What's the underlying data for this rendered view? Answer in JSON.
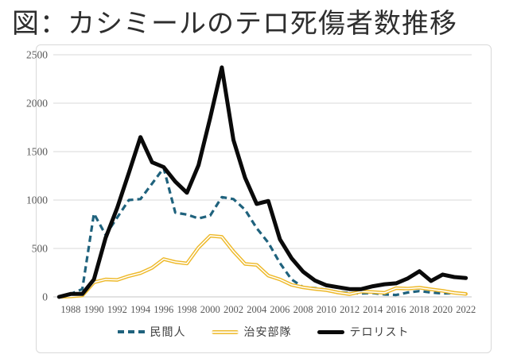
{
  "title": "図：カシミールのテロ死傷者数推移",
  "colors": {
    "civilians": "#1f627d",
    "security_forces": "#eeb92a",
    "security_forces_inner": "#ffffff",
    "terrorists": "#0a0a0a",
    "gridline": "#d9d9d9",
    "axis_line": "#c6c6c6",
    "axis_text": "#595959",
    "legend_text": "#3f3f3f",
    "frame_border": "#d9d9d9"
  },
  "chart_data": {
    "type": "line",
    "title": "図：カシミールのテロ死傷者数推移",
    "xlabel": "",
    "ylabel": "",
    "ylim": [
      0,
      2500
    ],
    "y_ticks": [
      0,
      500,
      1000,
      1500,
      2000,
      2500
    ],
    "grid": "horizontal",
    "legend_position": "bottom",
    "x": [
      1987,
      1988,
      1989,
      1990,
      1991,
      1992,
      1993,
      1994,
      1995,
      1996,
      1997,
      1998,
      1999,
      2000,
      2001,
      2002,
      2003,
      2004,
      2005,
      2006,
      2007,
      2008,
      2009,
      2010,
      2011,
      2012,
      2013,
      2014,
      2015,
      2016,
      2017,
      2018,
      2019,
      2020,
      2021,
      2022
    ],
    "x_tick_labels": [
      "1988",
      "1990",
      "1992",
      "1994",
      "1996",
      "1998",
      "2000",
      "2002",
      "2004",
      "2006",
      "2008",
      "2010",
      "2012",
      "2014",
      "2016",
      "2018",
      "2020",
      "2022"
    ],
    "series": [
      {
        "key": "civilians",
        "name": "民間人",
        "style": "dashed",
        "values": [
          0,
          30,
          80,
          860,
          640,
          820,
          1000,
          1010,
          1170,
          1330,
          870,
          850,
          810,
          840,
          1030,
          1010,
          900,
          710,
          560,
          350,
          180,
          100,
          90,
          75,
          50,
          40,
          35,
          40,
          25,
          20,
          45,
          60,
          45,
          35,
          40,
          30
        ]
      },
      {
        "key": "security-forces",
        "name": "治安部隊",
        "style": "double",
        "values": [
          0,
          5,
          15,
          150,
          180,
          175,
          215,
          245,
          300,
          390,
          360,
          345,
          510,
          630,
          620,
          470,
          340,
          330,
          220,
          180,
          125,
          98,
          82,
          70,
          45,
          28,
          55,
          50,
          42,
          90,
          85,
          95,
          78,
          62,
          42,
          30
        ]
      },
      {
        "key": "terrorists",
        "name": "テロリスト",
        "style": "thick",
        "values": [
          0,
          30,
          30,
          180,
          610,
          920,
          1280,
          1650,
          1390,
          1340,
          1190,
          1075,
          1360,
          1850,
          2370,
          1620,
          1230,
          960,
          990,
          595,
          400,
          260,
          170,
          120,
          100,
          80,
          80,
          110,
          130,
          140,
          190,
          265,
          165,
          230,
          205,
          195
        ]
      }
    ]
  }
}
